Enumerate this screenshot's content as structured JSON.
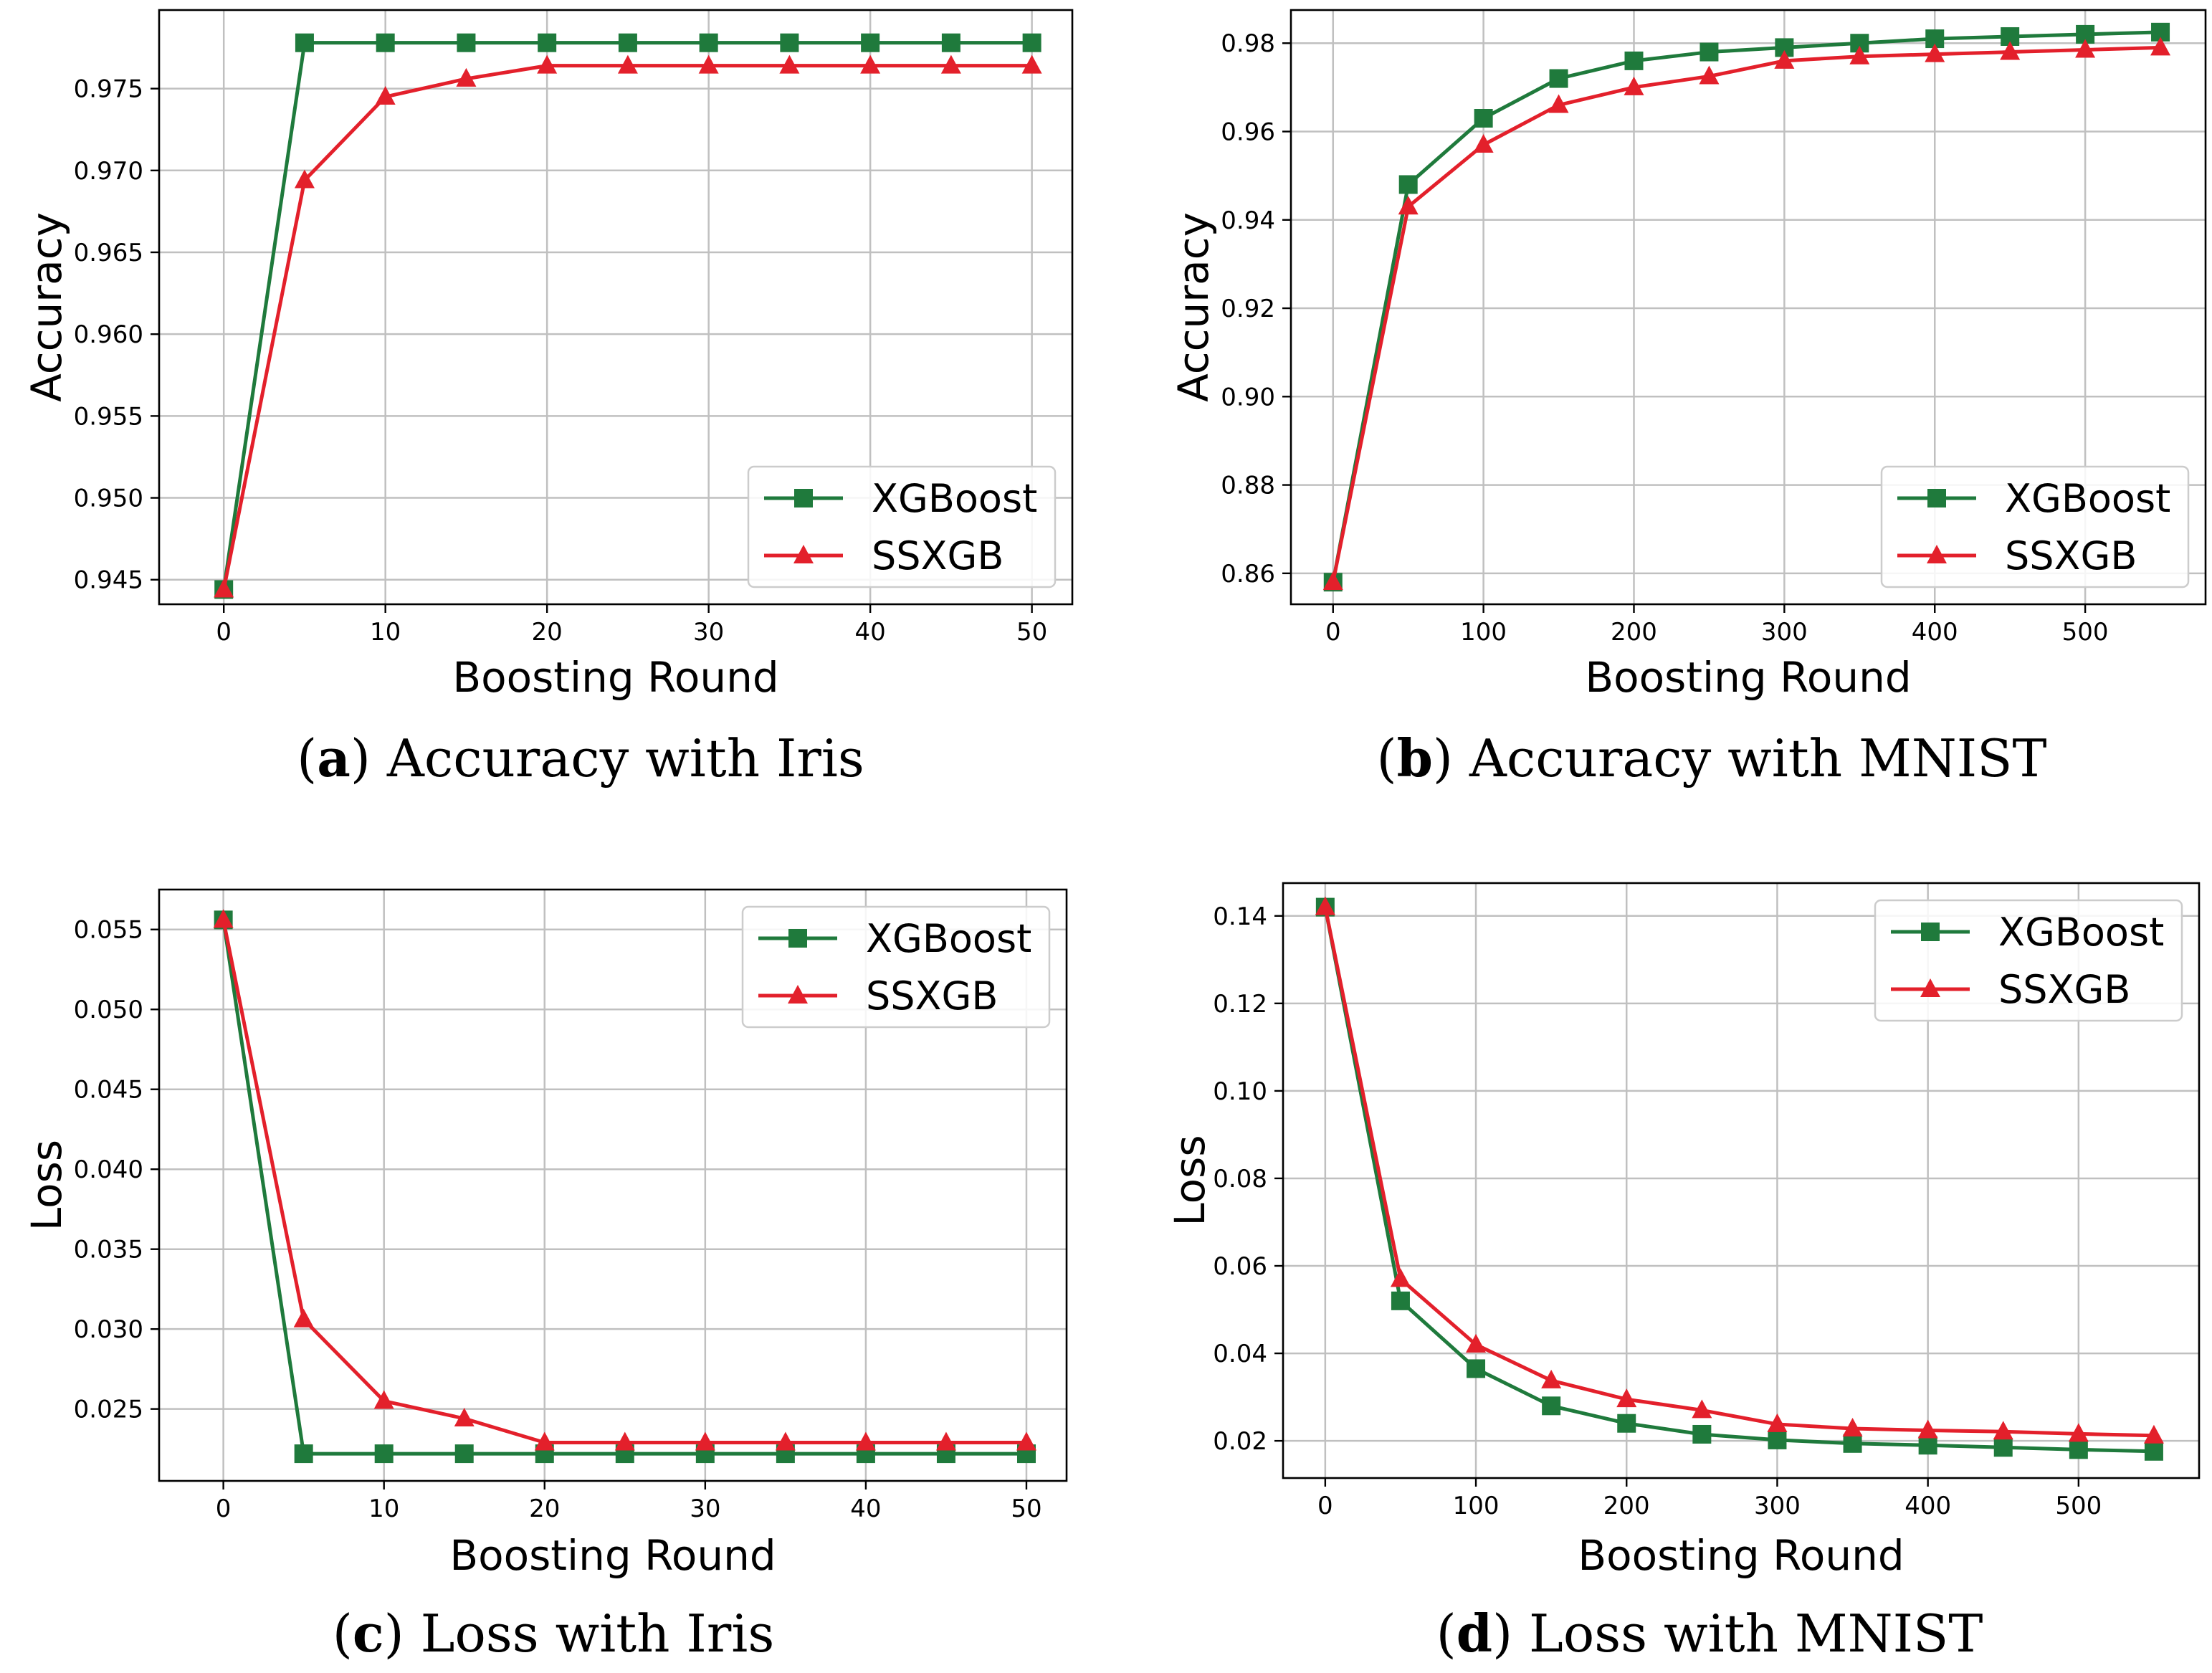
{
  "colors": {
    "xgboost": "#1f7a3c",
    "ssxgb": "#e3202b"
  },
  "chart_data": [
    {
      "id": "a",
      "type": "line",
      "caption_letter": "a",
      "caption_text": "Accuracy with Iris",
      "xlabel": "Boosting Round",
      "ylabel": "Accuracy",
      "xlim": [
        -4,
        52.5
      ],
      "ylim": [
        0.9435,
        0.9798
      ],
      "xticks": [
        0,
        10,
        20,
        30,
        40,
        50
      ],
      "yticks": [
        0.945,
        0.95,
        0.955,
        0.96,
        0.965,
        0.97,
        0.975
      ],
      "ytick_labels": [
        "0.945",
        "0.950",
        "0.955",
        "0.960",
        "0.965",
        "0.970",
        "0.975"
      ],
      "legend_position": "lower-right",
      "x": [
        0,
        5,
        10,
        15,
        20,
        25,
        30,
        35,
        40,
        45,
        50
      ],
      "series": [
        {
          "name": "XGBoost",
          "marker": "square",
          "values": [
            0.9444,
            0.9778,
            0.9778,
            0.9778,
            0.9778,
            0.9778,
            0.9778,
            0.9778,
            0.9778,
            0.9778,
            0.9778
          ]
        },
        {
          "name": "SSXGB",
          "marker": "triangle",
          "values": [
            0.9444,
            0.9694,
            0.9745,
            0.9756,
            0.9764,
            0.9764,
            0.9764,
            0.9764,
            0.9764,
            0.9764,
            0.9764
          ]
        }
      ]
    },
    {
      "id": "b",
      "type": "line",
      "caption_letter": "b",
      "caption_text": "Accuracy with MNIST",
      "xlabel": "Boosting Round",
      "ylabel": "Accuracy",
      "xlim": [
        -28,
        580
      ],
      "ylim": [
        0.853,
        0.9875
      ],
      "xticks": [
        0,
        100,
        200,
        300,
        400,
        500
      ],
      "yticks": [
        0.86,
        0.88,
        0.9,
        0.92,
        0.94,
        0.96,
        0.98
      ],
      "ytick_labels": [
        "0.86",
        "0.88",
        "0.90",
        "0.92",
        "0.94",
        "0.96",
        "0.98"
      ],
      "legend_position": "lower-right",
      "x": [
        0,
        50,
        100,
        150,
        200,
        250,
        300,
        350,
        400,
        450,
        500,
        550
      ],
      "series": [
        {
          "name": "XGBoost",
          "marker": "square",
          "values": [
            0.858,
            0.948,
            0.963,
            0.972,
            0.976,
            0.978,
            0.979,
            0.98,
            0.981,
            0.9815,
            0.982,
            0.9825
          ]
        },
        {
          "name": "SSXGB",
          "marker": "triangle",
          "values": [
            0.858,
            0.943,
            0.957,
            0.966,
            0.97,
            0.9725,
            0.976,
            0.977,
            0.9775,
            0.978,
            0.9785,
            0.979
          ]
        }
      ]
    },
    {
      "id": "c",
      "type": "line",
      "caption_letter": "c",
      "caption_text": "Loss with Iris",
      "xlabel": "Boosting Round",
      "ylabel": "Loss",
      "xlim": [
        -4,
        52.5
      ],
      "ylim": [
        0.0205,
        0.0575
      ],
      "xticks": [
        0,
        10,
        20,
        30,
        40,
        50
      ],
      "yticks": [
        0.025,
        0.03,
        0.035,
        0.04,
        0.045,
        0.05,
        0.055
      ],
      "ytick_labels": [
        "0.025",
        "0.030",
        "0.035",
        "0.040",
        "0.045",
        "0.050",
        "0.055"
      ],
      "legend_position": "upper-right",
      "x": [
        0,
        5,
        10,
        15,
        20,
        25,
        30,
        35,
        40,
        45,
        50
      ],
      "series": [
        {
          "name": "XGBoost",
          "marker": "square",
          "values": [
            0.0556,
            0.0222,
            0.0222,
            0.0222,
            0.0222,
            0.0222,
            0.0222,
            0.0222,
            0.0222,
            0.0222,
            0.0222
          ]
        },
        {
          "name": "SSXGB",
          "marker": "triangle",
          "values": [
            0.0556,
            0.0306,
            0.0255,
            0.0244,
            0.0229,
            0.0229,
            0.0229,
            0.0229,
            0.0229,
            0.0229,
            0.0229
          ]
        }
      ]
    },
    {
      "id": "d",
      "type": "line",
      "caption_letter": "d",
      "caption_text": "Loss with MNIST",
      "xlabel": "Boosting Round",
      "ylabel": "Loss",
      "xlim": [
        -28,
        580
      ],
      "ylim": [
        0.0115,
        0.1475
      ],
      "xticks": [
        0,
        100,
        200,
        300,
        400,
        500
      ],
      "yticks": [
        0.02,
        0.04,
        0.06,
        0.08,
        0.1,
        0.12,
        0.14
      ],
      "ytick_labels": [
        "0.02",
        "0.04",
        "0.06",
        "0.08",
        "0.10",
        "0.12",
        "0.14"
      ],
      "legend_position": "upper-right",
      "x": [
        0,
        50,
        100,
        150,
        200,
        250,
        300,
        350,
        400,
        450,
        500,
        550
      ],
      "series": [
        {
          "name": "XGBoost",
          "marker": "square",
          "values": [
            0.142,
            0.052,
            0.0365,
            0.028,
            0.024,
            0.0215,
            0.0202,
            0.0194,
            0.019,
            0.0185,
            0.018,
            0.0176
          ]
        },
        {
          "name": "SSXGB",
          "marker": "triangle",
          "values": [
            0.142,
            0.057,
            0.042,
            0.0338,
            0.0295,
            0.027,
            0.0238,
            0.0228,
            0.0224,
            0.0221,
            0.0216,
            0.0212
          ]
        }
      ]
    }
  ]
}
